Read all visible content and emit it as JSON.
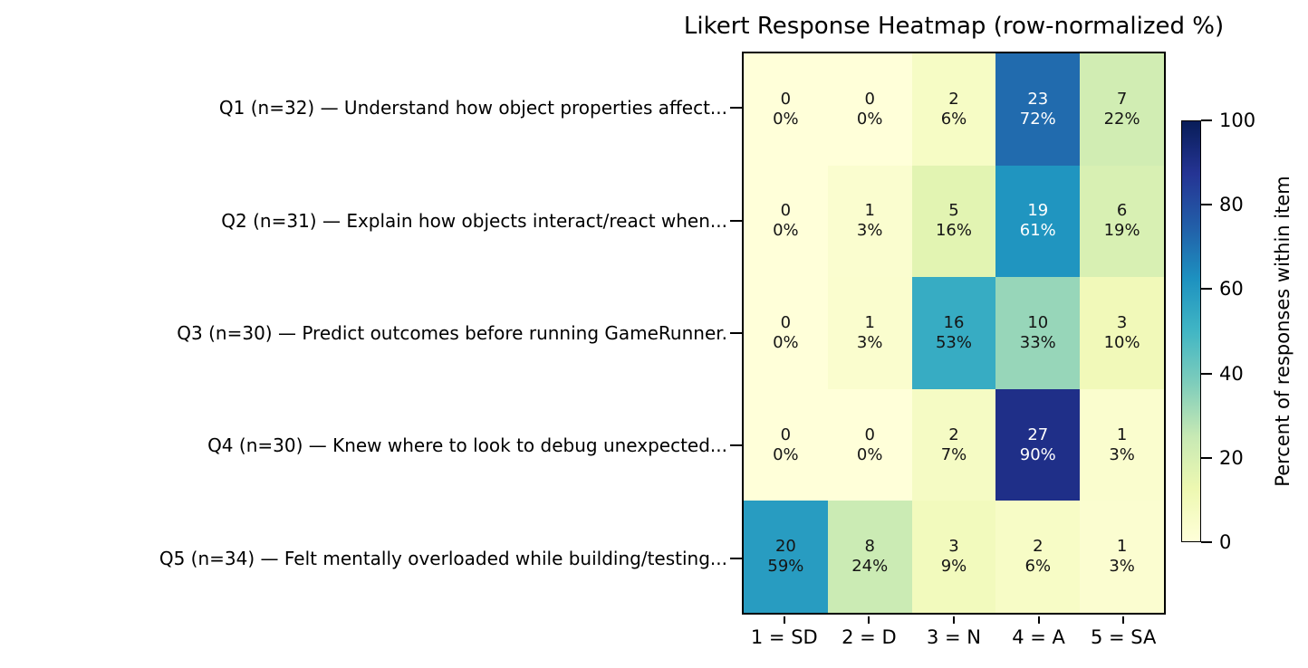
{
  "chart_data": {
    "type": "heatmap",
    "title": "Likert Response Heatmap (row-normalized %)",
    "colorbar_label": "Percent of responses within item",
    "colorbar_ticks": [
      0,
      20,
      40,
      60,
      80,
      100
    ],
    "value_range": [
      0,
      100
    ],
    "x_tick_labels": [
      "1 = SD",
      "2 = D",
      "3 = N",
      "4 = A",
      "5 = SA"
    ],
    "rows": [
      {
        "label": "Q1 (n=32) — Understand how object properties affect...",
        "n": 32,
        "counts": [
          0,
          0,
          2,
          23,
          7
        ],
        "pct_labels": [
          "0%",
          "0%",
          "6%",
          "72%",
          "22%"
        ]
      },
      {
        "label": "Q2 (n=31) — Explain how objects interact/react when...",
        "n": 31,
        "counts": [
          0,
          1,
          5,
          19,
          6
        ],
        "pct_labels": [
          "0%",
          "3%",
          "16%",
          "61%",
          "19%"
        ]
      },
      {
        "label": "Q3 (n=30) — Predict outcomes before running GameRunner.",
        "n": 30,
        "counts": [
          0,
          1,
          16,
          10,
          3
        ],
        "pct_labels": [
          "0%",
          "3%",
          "53%",
          "33%",
          "10%"
        ]
      },
      {
        "label": "Q4 (n=30) — Knew where to look to debug unexpected...",
        "n": 30,
        "counts": [
          0,
          0,
          2,
          27,
          1
        ],
        "pct_labels": [
          "0%",
          "0%",
          "7%",
          "90%",
          "3%"
        ]
      },
      {
        "label": "Q5 (n=34) — Felt mentally overloaded while building/testing...",
        "n": 34,
        "counts": [
          20,
          8,
          3,
          2,
          1
        ],
        "pct_labels": [
          "59%",
          "24%",
          "9%",
          "6%",
          "3%"
        ]
      }
    ],
    "colormap": {
      "name": "YlGnBu",
      "stops": [
        [
          0.0,
          "#ffffd9"
        ],
        [
          0.125,
          "#edf8b1"
        ],
        [
          0.25,
          "#c7e9b4"
        ],
        [
          0.375,
          "#7fcdbb"
        ],
        [
          0.5,
          "#41b6c4"
        ],
        [
          0.625,
          "#1d91c0"
        ],
        [
          0.75,
          "#225ea8"
        ],
        [
          0.875,
          "#253494"
        ],
        [
          1.0,
          "#081d58"
        ]
      ]
    },
    "colors": {
      "background": "#ffffff",
      "axis": "#000000",
      "annotation_dark": "#151515",
      "annotation_light": "#ffffff"
    }
  }
}
